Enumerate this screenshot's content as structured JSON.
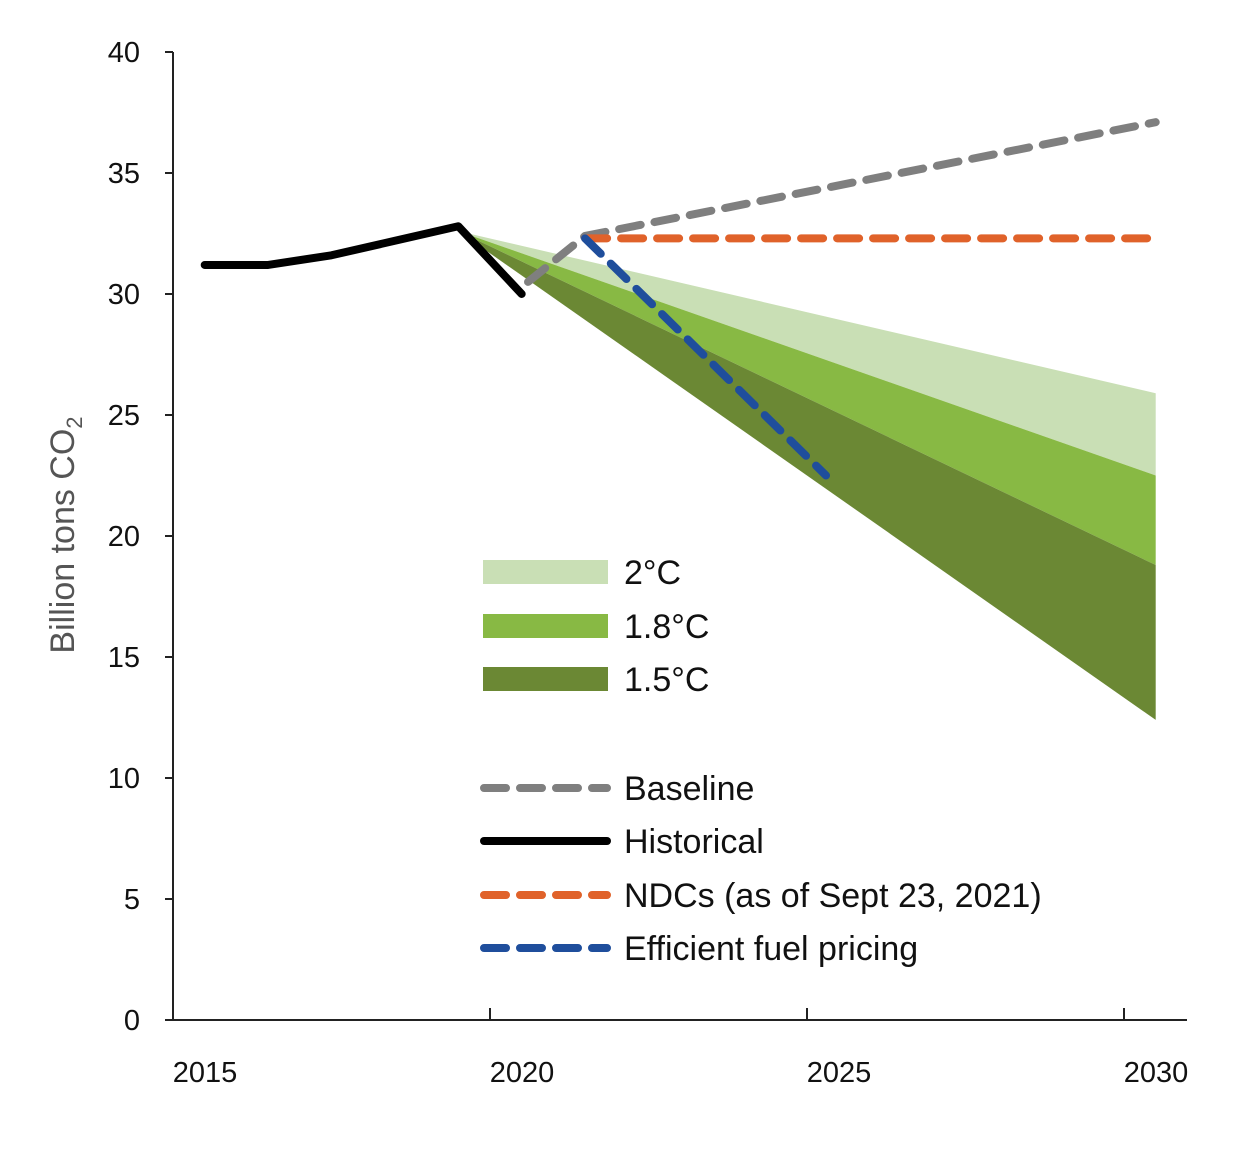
{
  "chart_data": {
    "type": "line",
    "title": "",
    "xlabel": "",
    "ylabel": "Billion tons CO",
    "ylabel_subscript": "2",
    "xlim": [
      2015,
      2031
    ],
    "ylim": [
      0,
      40
    ],
    "x_ticks": [
      2015,
      2020,
      2025,
      2030
    ],
    "y_ticks": [
      0,
      5,
      10,
      15,
      20,
      25,
      30,
      35,
      40
    ],
    "grid": false,
    "legend_placement": "center",
    "bands": [
      {
        "name": "2°C",
        "color": "#c9dfb5",
        "start": [
          2019.5,
          32.6
        ],
        "end_x": 2030.5,
        "end_upper": 25.9,
        "end_lower": 22.5
      },
      {
        "name": "1.8°C",
        "color": "#88b944",
        "start": [
          2019.5,
          32.6
        ],
        "end_x": 2030.5,
        "end_upper": 22.5,
        "end_lower": 18.8
      },
      {
        "name": "1.5°C",
        "color": "#6b8834",
        "start": [
          2019.5,
          32.6
        ],
        "end_x": 2030.5,
        "end_upper": 18.8,
        "end_lower": 12.4
      }
    ],
    "series": [
      {
        "name": "Baseline",
        "color": "#7f7f7f",
        "dash": true,
        "x": [
          2020.6,
          2021.5,
          2030.5
        ],
        "y": [
          30.5,
          32.4,
          37.1
        ]
      },
      {
        "name": "Historical",
        "color": "#000000",
        "dash": false,
        "x": [
          2015.5,
          2016.5,
          2017.5,
          2018.5,
          2019.5,
          2020.5
        ],
        "y": [
          31.2,
          31.2,
          31.6,
          32.2,
          32.8,
          30.0
        ]
      },
      {
        "name": "NDCs (as of Sept 23, 2021)",
        "color": "#e0622a",
        "dash": true,
        "x": [
          2021.5,
          2030.5
        ],
        "y": [
          32.3,
          32.3
        ]
      },
      {
        "name": "Efficient fuel pricing",
        "color": "#1f4e9c",
        "dash": true,
        "x": [
          2021.5,
          2025.3
        ],
        "y": [
          32.3,
          22.5
        ]
      }
    ]
  }
}
